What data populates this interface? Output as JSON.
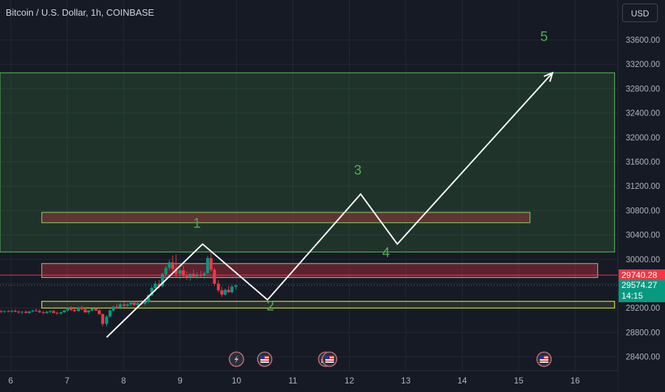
{
  "symbol_title": "Bitcoin / U.S. Dollar, 1h, COINBASE",
  "currency_button": "USD",
  "price_axis": {
    "min": 28100,
    "max": 33850,
    "labels": [
      "33600.00",
      "33200.00",
      "32800.00",
      "32400.00",
      "32000.00",
      "31600.00",
      "31200.00",
      "30800.00",
      "30400.00",
      "30000.00",
      "29200.00",
      "28800.00",
      "28400.00"
    ],
    "values": [
      33600,
      33200,
      32800,
      32400,
      32000,
      31600,
      31200,
      30800,
      30400,
      30000,
      29200,
      28800,
      28400
    ]
  },
  "time_axis": {
    "labels": [
      "6",
      "7",
      "8",
      "9",
      "10",
      "11",
      "12",
      "13",
      "14",
      "15",
      "16"
    ],
    "values": [
      6,
      7,
      8,
      9,
      10,
      11,
      12,
      13,
      14,
      15,
      16
    ]
  },
  "price_tags": {
    "red_line": {
      "value": 29740.28,
      "label": "29740.28",
      "color": "#f23645"
    },
    "last_price": {
      "value": 29574.27,
      "label": "29574.27",
      "countdown": "14:15",
      "color": "#089981"
    }
  },
  "zones": [
    {
      "type": "green-target",
      "x_start": 5.8,
      "x_end": 16.7,
      "top": 33060,
      "bottom": 30120,
      "color": "#4caf50"
    },
    {
      "type": "red-box",
      "x_start": 6.55,
      "x_end": 15.2,
      "top": 30770,
      "bottom": 30600,
      "color": "#4caf50"
    },
    {
      "type": "red-box",
      "x_start": 6.55,
      "x_end": 16.4,
      "top": 29930,
      "bottom": 29700,
      "color": "#4caf50"
    },
    {
      "type": "yellow-box",
      "x_start": 6.55,
      "x_end": 16.7,
      "top": 29310,
      "bottom": 29200,
      "color": "#cddc39"
    }
  ],
  "wave_path": [
    {
      "x": 7.7,
      "y": 28720
    },
    {
      "x": 9.4,
      "y": 30250
    },
    {
      "x": 10.55,
      "y": 29335
    },
    {
      "x": 12.2,
      "y": 31070
    },
    {
      "x": 12.85,
      "y": 30250
    },
    {
      "x": 15.6,
      "y": 33060
    }
  ],
  "wave_labels": [
    {
      "text": "1",
      "x": 9.3,
      "y": 30520
    },
    {
      "text": "2",
      "x": 10.6,
      "y": 29160
    },
    {
      "text": "3",
      "x": 12.15,
      "y": 31390
    },
    {
      "text": "4",
      "x": 12.65,
      "y": 30040
    },
    {
      "text": "5",
      "x": 15.45,
      "y": 33580
    }
  ],
  "candles": [
    [
      5.83,
      29150,
      29170,
      29120,
      29140
    ],
    [
      5.89,
      29140,
      29160,
      29120,
      29150
    ],
    [
      5.96,
      29150,
      29165,
      29130,
      29145
    ],
    [
      6.02,
      29145,
      29170,
      29120,
      29155
    ],
    [
      6.08,
      29155,
      29175,
      29130,
      29140
    ],
    [
      6.14,
      29140,
      29160,
      29110,
      29130
    ],
    [
      6.2,
      29130,
      29150,
      29100,
      29140
    ],
    [
      6.27,
      29140,
      29160,
      29110,
      29120
    ],
    [
      6.33,
      29120,
      29150,
      29100,
      29145
    ],
    [
      6.39,
      29145,
      29170,
      29130,
      29160
    ],
    [
      6.45,
      29160,
      29190,
      29140,
      29150
    ],
    [
      6.51,
      29150,
      29175,
      29120,
      29130
    ],
    [
      6.58,
      29130,
      29150,
      29100,
      29120
    ],
    [
      6.64,
      29120,
      29150,
      29100,
      29140
    ],
    [
      6.7,
      29140,
      29160,
      29120,
      29150
    ],
    [
      6.76,
      29150,
      29170,
      29110,
      29120
    ],
    [
      6.82,
      29120,
      29140,
      29090,
      29110
    ],
    [
      6.89,
      29110,
      29140,
      29090,
      29130
    ],
    [
      6.95,
      29130,
      29170,
      29120,
      29160
    ],
    [
      7.01,
      29160,
      29210,
      29140,
      29200
    ],
    [
      7.07,
      29200,
      29230,
      29150,
      29170
    ],
    [
      7.13,
      29170,
      29200,
      29130,
      29150
    ],
    [
      7.2,
      29150,
      29220,
      29140,
      29210
    ],
    [
      7.26,
      29210,
      29240,
      29160,
      29180
    ],
    [
      7.32,
      29180,
      29200,
      29120,
      29130
    ],
    [
      7.38,
      29130,
      29170,
      29100,
      29160
    ],
    [
      7.44,
      29160,
      29200,
      29140,
      29190
    ],
    [
      7.51,
      29190,
      29210,
      29150,
      29160
    ],
    [
      7.57,
      29160,
      29180,
      29090,
      29100
    ],
    [
      7.63,
      29100,
      29110,
      28900,
      28940
    ],
    [
      7.7,
      28940,
      29080,
      28900,
      29060
    ],
    [
      7.76,
      29060,
      29180,
      29040,
      29160
    ],
    [
      7.82,
      29160,
      29240,
      29140,
      29220
    ],
    [
      7.88,
      29220,
      29270,
      29190,
      29200
    ],
    [
      7.94,
      29200,
      29290,
      29180,
      29260
    ],
    [
      8.01,
      29260,
      29300,
      29210,
      29240
    ],
    [
      8.07,
      29240,
      29280,
      29200,
      29260
    ],
    [
      8.13,
      29260,
      29320,
      29230,
      29290
    ],
    [
      8.19,
      29290,
      29310,
      29240,
      29250
    ],
    [
      8.25,
      29250,
      29300,
      29230,
      29280
    ],
    [
      8.32,
      29280,
      29330,
      29250,
      29270
    ],
    [
      8.38,
      29270,
      29310,
      29240,
      29300
    ],
    [
      8.44,
      29300,
      29430,
      29280,
      29410
    ],
    [
      8.5,
      29410,
      29560,
      29390,
      29530
    ],
    [
      8.56,
      29530,
      29640,
      29470,
      29600
    ],
    [
      8.63,
      29600,
      29660,
      29520,
      29560
    ],
    [
      8.69,
      29560,
      29780,
      29540,
      29760
    ],
    [
      8.75,
      29760,
      29890,
      29700,
      29860
    ],
    [
      8.81,
      29860,
      29990,
      29820,
      29950
    ],
    [
      8.87,
      29950,
      30060,
      29800,
      29840
    ],
    [
      8.93,
      29840,
      30080,
      29700,
      29760
    ],
    [
      9,
      29760,
      29850,
      29680,
      29820
    ],
    [
      9.06,
      29820,
      29900,
      29700,
      29730
    ],
    [
      9.12,
      29730,
      29800,
      29660,
      29700
    ],
    [
      9.18,
      29700,
      29780,
      29650,
      29760
    ],
    [
      9.24,
      29760,
      29830,
      29700,
      29720
    ],
    [
      9.3,
      29720,
      29790,
      29680,
      29750
    ],
    [
      9.37,
      29750,
      29810,
      29710,
      29730
    ],
    [
      9.43,
      29730,
      29800,
      29680,
      29770
    ],
    [
      9.49,
      29770,
      30060,
      29760,
      30020
    ],
    [
      9.55,
      30020,
      30110,
      29800,
      29830
    ],
    [
      9.61,
      29830,
      29860,
      29560,
      29600
    ],
    [
      9.68,
      29600,
      29660,
      29460,
      29490
    ],
    [
      9.74,
      29490,
      29550,
      29380,
      29420
    ],
    [
      9.8,
      29420,
      29520,
      29400,
      29500
    ],
    [
      9.86,
      29500,
      29560,
      29440,
      29460
    ],
    [
      9.92,
      29460,
      29580,
      29440,
      29550
    ],
    [
      9.99,
      29550,
      29590,
      29500,
      29570
    ]
  ],
  "bottom_icons": [
    {
      "name": "flash-event",
      "x": 10.0
    },
    {
      "name": "us-flag-event",
      "x": 10.5
    },
    {
      "name": "us-flag-event",
      "x": 11.58
    },
    {
      "name": "us-flag-event",
      "x": 11.65
    },
    {
      "name": "us-flag-event",
      "x": 15.45
    }
  ],
  "colors": {
    "background": "#161a25",
    "grid": "#242836",
    "up": "#089981",
    "down": "#f23645",
    "wave": "#ffffff",
    "label_green": "#4caf50"
  }
}
